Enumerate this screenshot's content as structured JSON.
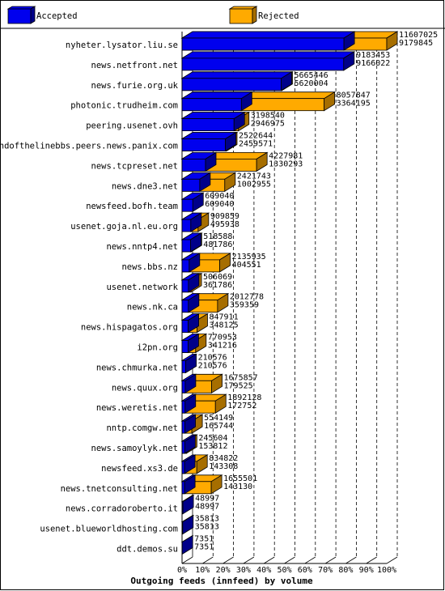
{
  "colors": {
    "accepted": "#0000ee",
    "accepted_side": "#00008a",
    "rejected": "#ffaa00",
    "rejected_side": "#a66e00",
    "grid": "#000000"
  },
  "chart_data": {
    "type": "bar",
    "orientation": "horizontal",
    "stacked": "overlaid-3d",
    "title": "Outgoing feeds (innfeed) by volume",
    "legend_position": "top",
    "xlim": [
      0,
      100
    ],
    "x_ticks": [
      "0%",
      "10%",
      "20%",
      "30%",
      "40%",
      "50%",
      "60%",
      "70%",
      "80%",
      "90%",
      "100%"
    ],
    "series": [
      {
        "name": "Accepted",
        "color_key": "accepted"
      },
      {
        "name": "Rejected",
        "color_key": "rejected"
      }
    ],
    "categories": [
      "nyheter.lysator.liu.se",
      "news.netfront.net",
      "news.furie.org.uk",
      "photonic.trudheim.com",
      "peering.usenet.ovh",
      "endofthelinebbs.peers.news.panix.com",
      "news.tcpreset.net",
      "news.dne3.net",
      "newsfeed.bofh.team",
      "usenet.goja.nl.eu.org",
      "news.nntp4.net",
      "news.bbs.nz",
      "usenet.network",
      "news.nk.ca",
      "news.hispagatos.org",
      "i2pn.org",
      "news.chmurka.net",
      "news.quux.org",
      "news.weretis.net",
      "nntp.comgw.net",
      "news.samoylyk.net",
      "newsfeed.xs3.de",
      "news.tnetconsulting.net",
      "news.corradoroberto.it",
      "usenet.blueworldhosting.com",
      "ddt.demos.su"
    ],
    "offered": [
      11607025,
      9183453,
      5665446,
      8057847,
      3198540,
      2522644,
      4227981,
      2421743,
      609040,
      909859,
      518588,
      2135935,
      506069,
      2012778,
      847911,
      770953,
      210576,
      1675857,
      1892128,
      554149,
      245604,
      834822,
      1655501,
      48997,
      35813,
      7351
    ],
    "accepted": [
      9179845,
      9166022,
      5620004,
      3364195,
      2946975,
      2459571,
      1330293,
      1002955,
      609040,
      495938,
      481786,
      404551,
      361786,
      359359,
      348125,
      341216,
      210576,
      179525,
      172752,
      165744,
      153812,
      143308,
      143130,
      48997,
      35813,
      7351
    ]
  }
}
